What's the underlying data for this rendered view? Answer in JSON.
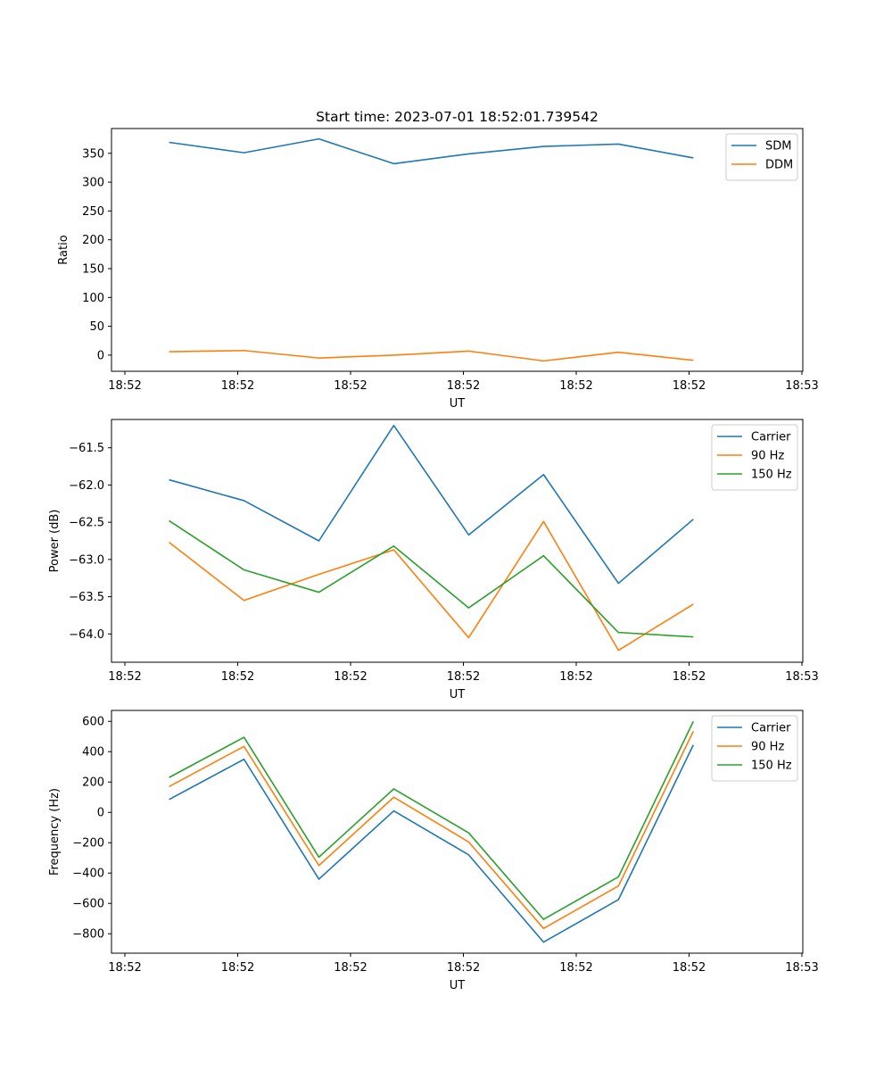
{
  "chart_data": [
    {
      "type": "line",
      "title": "Start time: 2023-07-01 18:52:01.739542",
      "xlabel": "UT",
      "ylabel": "Ratio",
      "x_tick_labels": [
        "18:52",
        "18:52",
        "18:52",
        "18:52",
        "18:52",
        "18:52",
        "18:53"
      ],
      "y_ticks": [
        0,
        50,
        100,
        150,
        200,
        250,
        300,
        350
      ],
      "y_tick_labels": [
        "0",
        "50",
        "100",
        "150",
        "200",
        "250",
        "300",
        "350"
      ],
      "ylim": [
        -28,
        393
      ],
      "xlim": [
        -0.1,
        1.1
      ],
      "x": [
        0,
        0.13,
        0.26,
        0.39,
        0.52,
        0.65,
        0.78,
        0.91
      ],
      "legend_position": "upper right",
      "series": [
        {
          "name": "SDM",
          "color": "#1f77b4",
          "values": [
            369,
            351,
            375,
            332,
            349,
            362,
            366,
            342
          ]
        },
        {
          "name": "DDM",
          "color": "#ff7f0e",
          "values": [
            6,
            8,
            -5,
            0,
            7,
            -10,
            5,
            -9
          ]
        }
      ]
    },
    {
      "type": "line",
      "title": "",
      "xlabel": "UT",
      "ylabel": "Power (dB)",
      "x_tick_labels": [
        "18:52",
        "18:52",
        "18:52",
        "18:52",
        "18:52",
        "18:52",
        "18:53"
      ],
      "y_ticks": [
        -64.0,
        -63.5,
        -63.0,
        -62.5,
        -62.0,
        -61.5
      ],
      "y_tick_labels": [
        "−64.0",
        "−63.5",
        "−63.0",
        "−62.5",
        "−62.0",
        "−61.5"
      ],
      "ylim": [
        -64.38,
        -61.12
      ],
      "xlim": [
        -0.1,
        1.1
      ],
      "x": [
        0,
        0.13,
        0.26,
        0.39,
        0.52,
        0.65,
        0.78,
        0.91
      ],
      "legend_position": "upper right",
      "series": [
        {
          "name": "Carrier",
          "color": "#1f77b4",
          "values": [
            -61.93,
            -62.21,
            -62.75,
            -61.2,
            -62.67,
            -61.86,
            -63.32,
            -62.46
          ]
        },
        {
          "name": "90 Hz",
          "color": "#ff7f0e",
          "values": [
            -62.77,
            -63.55,
            -63.2,
            -62.87,
            -64.05,
            -62.49,
            -64.22,
            -63.6
          ]
        },
        {
          "name": "150 Hz",
          "color": "#2ca02c",
          "values": [
            -62.48,
            -63.14,
            -63.44,
            -62.82,
            -63.65,
            -62.95,
            -63.98,
            -64.04
          ]
        }
      ]
    },
    {
      "type": "line",
      "title": "",
      "xlabel": "UT",
      "ylabel": "Frequency (Hz)",
      "x_tick_labels": [
        "18:52",
        "18:52",
        "18:52",
        "18:52",
        "18:52",
        "18:52",
        "18:53"
      ],
      "y_ticks": [
        -800,
        -600,
        -400,
        -200,
        0,
        200,
        400,
        600
      ],
      "y_tick_labels": [
        "−800",
        "−600",
        "−400",
        "−200",
        "0",
        "200",
        "400",
        "600"
      ],
      "ylim": [
        -928,
        672
      ],
      "xlim": [
        -0.1,
        1.1
      ],
      "x": [
        0,
        0.13,
        0.26,
        0.39,
        0.52,
        0.65,
        0.78,
        0.91
      ],
      "legend_position": "upper right",
      "series": [
        {
          "name": "Carrier",
          "color": "#1f77b4",
          "values": [
            85,
            350,
            -440,
            10,
            -280,
            -855,
            -575,
            445
          ]
        },
        {
          "name": "90 Hz",
          "color": "#ff7f0e",
          "values": [
            170,
            435,
            -350,
            100,
            -195,
            -765,
            -485,
            535
          ]
        },
        {
          "name": "150 Hz",
          "color": "#2ca02c",
          "values": [
            230,
            495,
            -295,
            155,
            -135,
            -705,
            -425,
            600
          ]
        }
      ]
    }
  ]
}
